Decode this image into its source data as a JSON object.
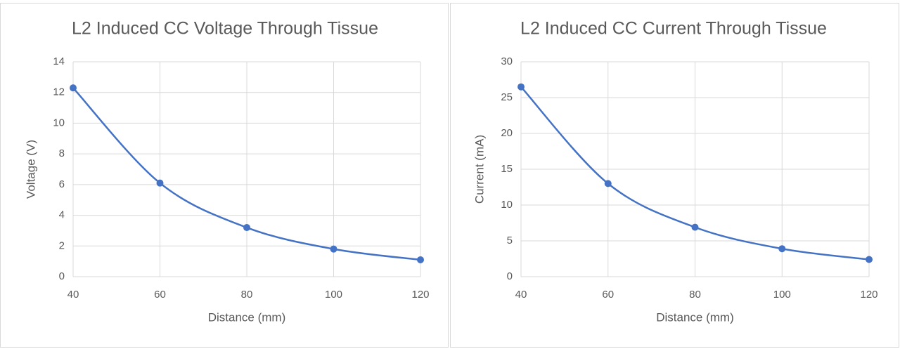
{
  "chart_data": [
    {
      "type": "line",
      "title": "L2 Induced CC Voltage Through Tissue",
      "x_label": "Distance (mm)",
      "y_label": "Voltage (V)",
      "x": [
        40,
        60,
        80,
        100,
        120
      ],
      "series": [
        {
          "name": "Voltage",
          "color": "#4472c4",
          "values": [
            12.3,
            6.1,
            3.2,
            1.8,
            1.1
          ]
        }
      ],
      "xlim": [
        40,
        120
      ],
      "xticks": [
        40,
        60,
        80,
        100,
        120
      ],
      "ylim": [
        0,
        14
      ],
      "yticks": [
        0,
        2,
        4,
        6,
        8,
        10,
        12,
        14
      ],
      "grid": true,
      "smooth": true
    },
    {
      "type": "line",
      "title": "L2 Induced CC Current Through Tissue",
      "x_label": "Distance (mm)",
      "y_label": "Current (mA)",
      "x": [
        40,
        60,
        80,
        100,
        120
      ],
      "series": [
        {
          "name": "Current",
          "color": "#4472c4",
          "values": [
            26.5,
            13.0,
            6.9,
            3.9,
            2.4
          ]
        }
      ],
      "xlim": [
        40,
        120
      ],
      "xticks": [
        40,
        60,
        80,
        100,
        120
      ],
      "ylim": [
        0,
        30
      ],
      "yticks": [
        0,
        5,
        10,
        15,
        20,
        25,
        30
      ],
      "grid": true,
      "smooth": true
    }
  ]
}
